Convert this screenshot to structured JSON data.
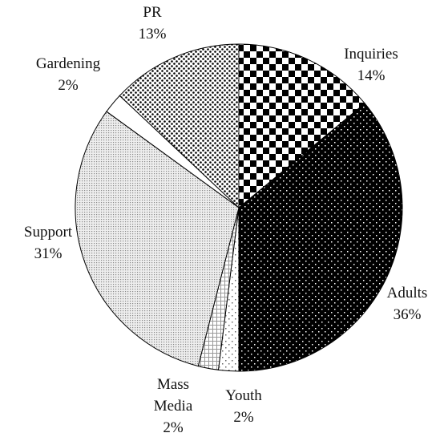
{
  "chart_data": {
    "type": "pie",
    "categories": [
      "Inquiries",
      "Adults",
      "Youth",
      "Mass Media",
      "Support",
      "Gardening",
      "PR"
    ],
    "values": [
      14,
      36,
      2,
      2,
      31,
      2,
      13
    ],
    "value_labels": [
      "14%",
      "36%",
      "2%",
      "2%",
      "31%",
      "2%",
      "13%"
    ]
  }
}
